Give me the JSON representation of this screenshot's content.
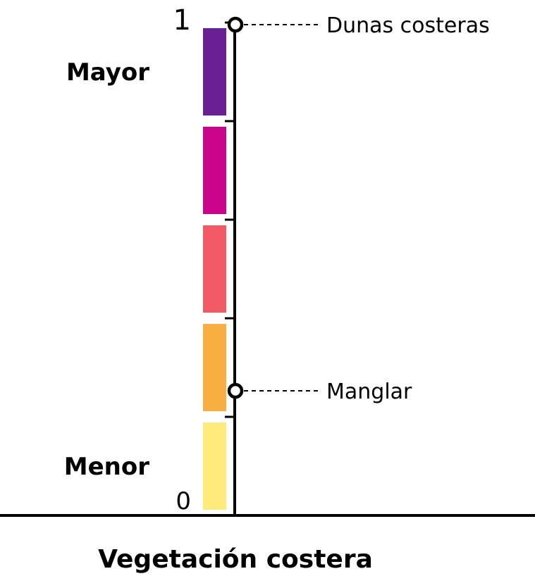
{
  "chart_data": {
    "type": "bar",
    "xlabel": "Vegetación costera",
    "ylim": [
      0,
      1
    ],
    "yticks": [
      {
        "value": 0,
        "label": "0"
      },
      {
        "value": 1,
        "label": "1"
      }
    ],
    "scale_labels": {
      "top": "Mayor",
      "bottom": "Menor"
    },
    "color_scale": [
      {
        "from": 0.0,
        "to": 0.2,
        "color": "#FFEB7C"
      },
      {
        "from": 0.2,
        "to": 0.4,
        "color": "#F9AE42"
      },
      {
        "from": 0.4,
        "to": 0.6,
        "color": "#F25A65"
      },
      {
        "from": 0.6,
        "to": 0.8,
        "color": "#C9048A"
      },
      {
        "from": 0.8,
        "to": 1.0,
        "color": "#6A1F95"
      }
    ],
    "points": [
      {
        "name": "Dunas costeras",
        "value": 1.0
      },
      {
        "name": "Manglar",
        "value": 0.25
      }
    ],
    "grid": false
  }
}
